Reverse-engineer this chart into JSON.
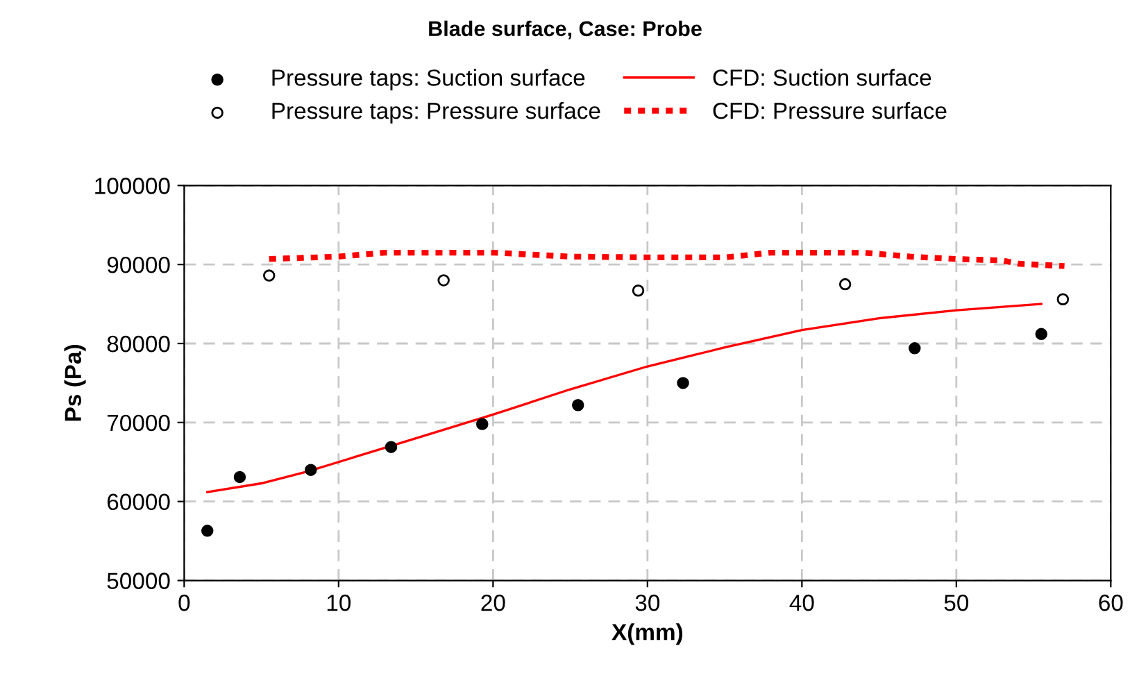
{
  "chart_data": {
    "type": "scatter",
    "title": "Blade surface, Case: Probe",
    "xlabel": "X(mm)",
    "ylabel": "Ps (Pa)",
    "xlim": [
      0,
      60
    ],
    "xticks": [
      0,
      10,
      20,
      30,
      40,
      50,
      60
    ],
    "ylim": [
      50000,
      100000
    ],
    "yticks": [
      50000,
      60000,
      70000,
      80000,
      90000,
      100000
    ],
    "grid": true,
    "legend": "top",
    "series": [
      {
        "name": "Pressure taps: Suction surface",
        "marker": "circle",
        "color": "#000000",
        "x": [
          1.5,
          3.6,
          8.2,
          13.4,
          19.3,
          25.5,
          32.3,
          47.3,
          55.5
        ],
        "values": [
          56300,
          63100,
          64000,
          66900,
          69800,
          72200,
          75000,
          79400,
          81200
        ]
      },
      {
        "name": "Pressure taps: Pressure surface",
        "marker": "circle",
        "color": "#ffffff",
        "x": [
          5.5,
          16.8,
          29.4,
          42.8,
          56.9
        ],
        "values": [
          88600,
          88000,
          86700,
          87500,
          85600
        ]
      },
      {
        "name": "CFD: Suction surface",
        "type": "line",
        "line_style": "solid",
        "color": "#ff0000",
        "x": [
          1.5,
          5,
          8,
          10,
          15,
          20,
          25,
          30,
          35,
          40,
          45,
          50,
          55.5
        ],
        "values": [
          61200,
          62300,
          63800,
          65000,
          68000,
          71000,
          74200,
          77100,
          79500,
          81700,
          83200,
          84200,
          85000
        ]
      },
      {
        "name": "CFD: Pressure surface",
        "type": "line",
        "line_style": "dotted",
        "color": "#ff0000",
        "x": [
          5.5,
          10,
          13,
          20,
          25,
          30,
          35,
          38,
          44,
          47,
          50,
          53,
          54,
          57
        ],
        "values": [
          90700,
          91000,
          91500,
          91500,
          91000,
          90900,
          90900,
          91500,
          91500,
          91000,
          90700,
          90500,
          90100,
          89800
        ]
      }
    ]
  }
}
